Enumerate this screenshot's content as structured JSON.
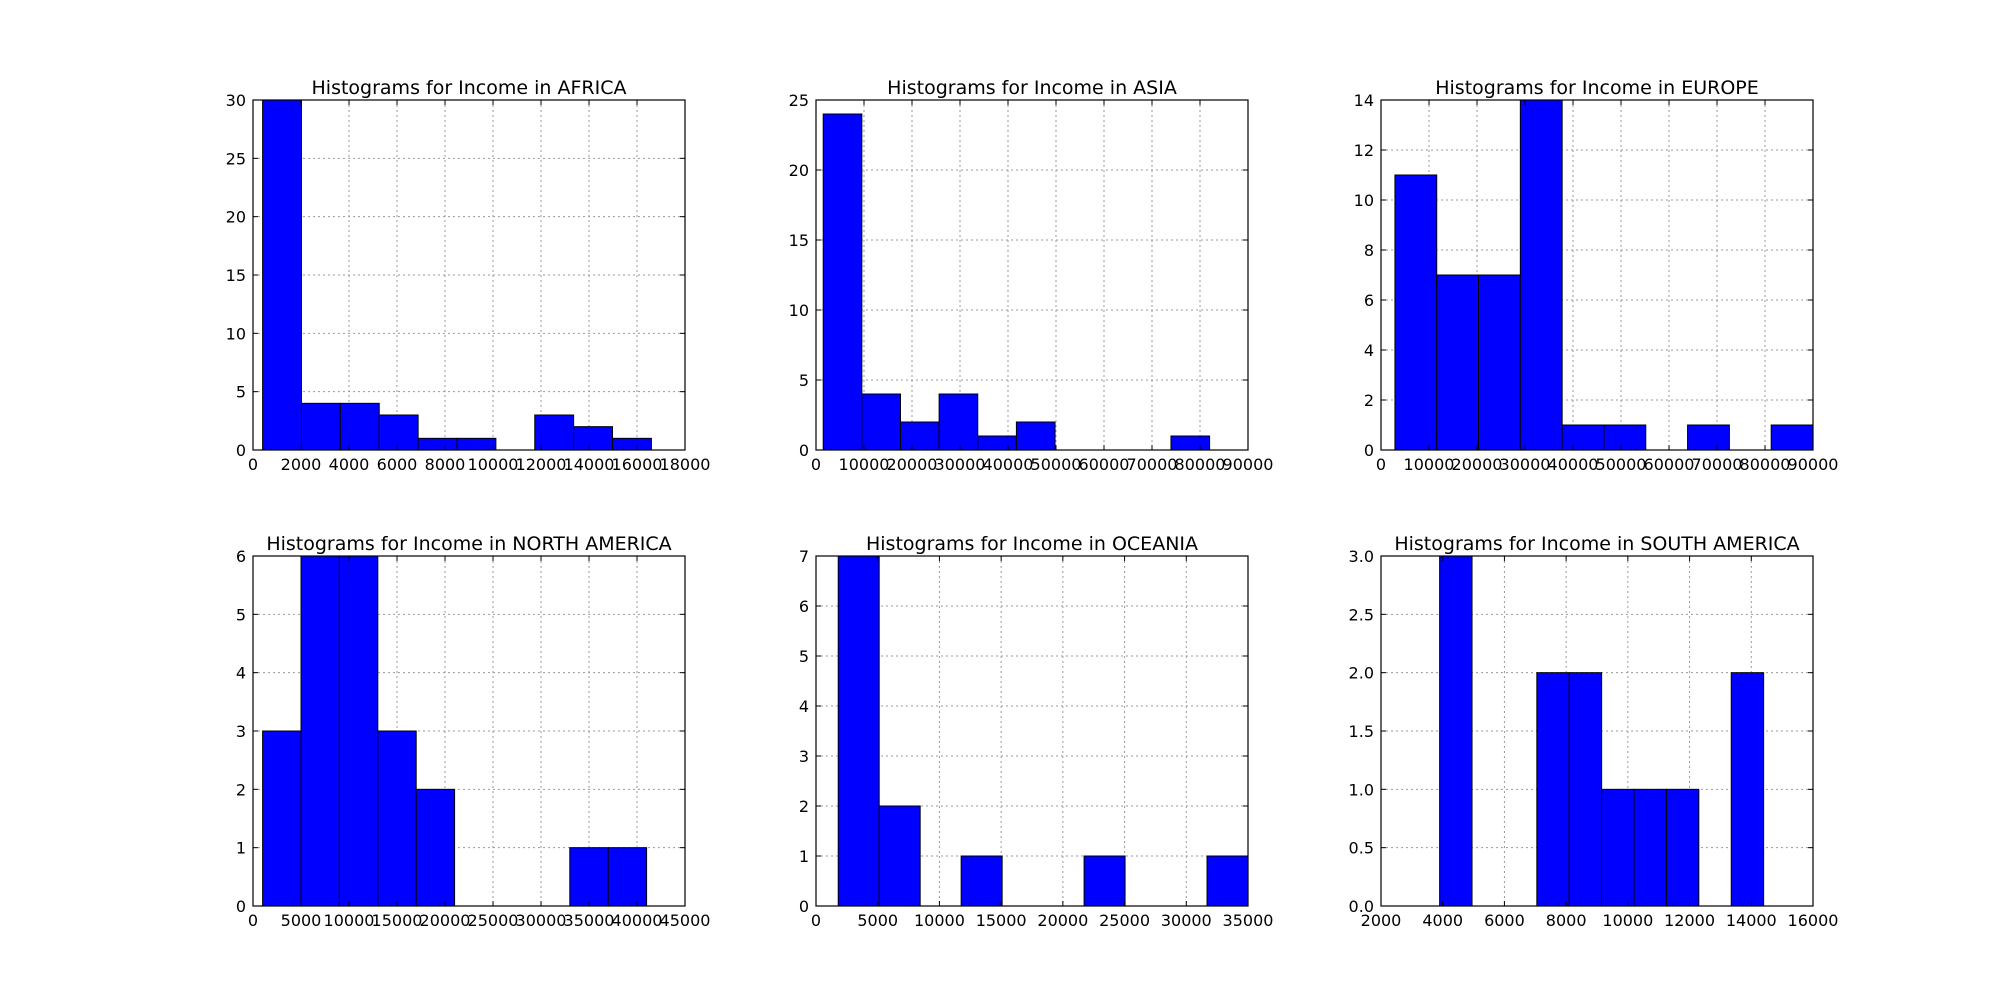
{
  "colors": {
    "bar": "#0000ff",
    "bar_edge": "#000000",
    "grid": "#9a9a9a",
    "background": "#ffffff"
  },
  "chart_data": [
    {
      "type": "bar",
      "title": "Histograms for Income in AFRICA",
      "xlabel": "",
      "ylabel": "",
      "xlim": [
        0,
        18000
      ],
      "ylim": [
        0,
        30
      ],
      "xticks": [
        0,
        2000,
        4000,
        6000,
        8000,
        10000,
        12000,
        14000,
        16000,
        18000
      ],
      "yticks": [
        0,
        5,
        10,
        15,
        20,
        25,
        30
      ],
      "grid": true,
      "bins": [
        {
          "x0": 400,
          "x1": 2020,
          "count": 30
        },
        {
          "x0": 2020,
          "x1": 3640,
          "count": 4
        },
        {
          "x0": 3640,
          "x1": 5260,
          "count": 4
        },
        {
          "x0": 5260,
          "x1": 6880,
          "count": 3
        },
        {
          "x0": 6880,
          "x1": 8500,
          "count": 1
        },
        {
          "x0": 8500,
          "x1": 10120,
          "count": 1
        },
        {
          "x0": 10120,
          "x1": 11740,
          "count": 0
        },
        {
          "x0": 11740,
          "x1": 13360,
          "count": 3
        },
        {
          "x0": 13360,
          "x1": 14980,
          "count": 2
        },
        {
          "x0": 14980,
          "x1": 16600,
          "count": 1
        }
      ]
    },
    {
      "type": "bar",
      "title": "Histograms for Income in ASIA",
      "xlabel": "",
      "ylabel": "",
      "xlim": [
        0,
        90000
      ],
      "ylim": [
        0,
        25
      ],
      "xticks": [
        0,
        10000,
        20000,
        30000,
        40000,
        50000,
        60000,
        70000,
        80000,
        90000
      ],
      "yticks": [
        0,
        5,
        10,
        15,
        20,
        25
      ],
      "grid": true,
      "bins": [
        {
          "x0": 1500,
          "x1": 9550,
          "count": 24
        },
        {
          "x0": 9550,
          "x1": 17600,
          "count": 4
        },
        {
          "x0": 17600,
          "x1": 25650,
          "count": 2
        },
        {
          "x0": 25650,
          "x1": 33700,
          "count": 4
        },
        {
          "x0": 33700,
          "x1": 41750,
          "count": 1
        },
        {
          "x0": 41750,
          "x1": 49800,
          "count": 2
        },
        {
          "x0": 49800,
          "x1": 57850,
          "count": 0
        },
        {
          "x0": 57850,
          "x1": 65900,
          "count": 0
        },
        {
          "x0": 65900,
          "x1": 73950,
          "count": 0
        },
        {
          "x0": 73950,
          "x1": 82000,
          "count": 1
        }
      ]
    },
    {
      "type": "bar",
      "title": "Histograms for Income in EUROPE",
      "xlabel": "",
      "ylabel": "",
      "xlim": [
        0,
        90000
      ],
      "ylim": [
        0,
        14
      ],
      "xticks": [
        0,
        10000,
        20000,
        30000,
        40000,
        50000,
        60000,
        70000,
        80000,
        90000
      ],
      "yticks": [
        0,
        2,
        4,
        6,
        8,
        10,
        12,
        14
      ],
      "grid": true,
      "bins": [
        {
          "x0": 2900,
          "x1": 11610,
          "count": 11
        },
        {
          "x0": 11610,
          "x1": 20320,
          "count": 7
        },
        {
          "x0": 20320,
          "x1": 29030,
          "count": 7
        },
        {
          "x0": 29030,
          "x1": 37740,
          "count": 14
        },
        {
          "x0": 37740,
          "x1": 46450,
          "count": 1
        },
        {
          "x0": 46450,
          "x1": 55160,
          "count": 1
        },
        {
          "x0": 55160,
          "x1": 63870,
          "count": 0
        },
        {
          "x0": 63870,
          "x1": 72580,
          "count": 1
        },
        {
          "x0": 72580,
          "x1": 81290,
          "count": 0
        },
        {
          "x0": 81290,
          "x1": 90000,
          "count": 1
        }
      ]
    },
    {
      "type": "bar",
      "title": "Histograms for Income in NORTH AMERICA",
      "xlabel": "",
      "ylabel": "",
      "xlim": [
        0,
        45000
      ],
      "ylim": [
        0,
        6
      ],
      "xticks": [
        0,
        5000,
        10000,
        15000,
        20000,
        25000,
        30000,
        35000,
        40000,
        45000
      ],
      "yticks": [
        0,
        1,
        2,
        3,
        4,
        5,
        6
      ],
      "grid": true,
      "bins": [
        {
          "x0": 1000,
          "x1": 5000,
          "count": 3
        },
        {
          "x0": 5000,
          "x1": 9000,
          "count": 6
        },
        {
          "x0": 9000,
          "x1": 13000,
          "count": 6
        },
        {
          "x0": 13000,
          "x1": 17000,
          "count": 3
        },
        {
          "x0": 17000,
          "x1": 21000,
          "count": 2
        },
        {
          "x0": 21000,
          "x1": 25000,
          "count": 0
        },
        {
          "x0": 25000,
          "x1": 29000,
          "count": 0
        },
        {
          "x0": 29000,
          "x1": 33000,
          "count": 0
        },
        {
          "x0": 33000,
          "x1": 37000,
          "count": 1
        },
        {
          "x0": 37000,
          "x1": 41000,
          "count": 1
        }
      ]
    },
    {
      "type": "bar",
      "title": "Histograms for Income in OCEANIA",
      "xlabel": "",
      "ylabel": "",
      "xlim": [
        0,
        35000
      ],
      "ylim": [
        0,
        7
      ],
      "xticks": [
        0,
        5000,
        10000,
        15000,
        20000,
        25000,
        30000,
        35000
      ],
      "yticks": [
        0,
        1,
        2,
        3,
        4,
        5,
        6,
        7
      ],
      "grid": true,
      "bins": [
        {
          "x0": 1800,
          "x1": 5120,
          "count": 7
        },
        {
          "x0": 5120,
          "x1": 8440,
          "count": 2
        },
        {
          "x0": 8440,
          "x1": 11760,
          "count": 0
        },
        {
          "x0": 11760,
          "x1": 15080,
          "count": 1
        },
        {
          "x0": 15080,
          "x1": 18400,
          "count": 0
        },
        {
          "x0": 18400,
          "x1": 21720,
          "count": 0
        },
        {
          "x0": 21720,
          "x1": 25040,
          "count": 1
        },
        {
          "x0": 25040,
          "x1": 28360,
          "count": 0
        },
        {
          "x0": 28360,
          "x1": 31680,
          "count": 0
        },
        {
          "x0": 31680,
          "x1": 35000,
          "count": 1
        }
      ]
    },
    {
      "type": "bar",
      "title": "Histograms for Income in SOUTH AMERICA",
      "xlabel": "",
      "ylabel": "",
      "xlim": [
        2000,
        16000
      ],
      "ylim": [
        0,
        3
      ],
      "xticks": [
        2000,
        4000,
        6000,
        8000,
        10000,
        12000,
        14000,
        16000
      ],
      "yticks": [
        "0.0",
        "0.5",
        "1.0",
        "1.5",
        "2.0",
        "2.5",
        "3.0"
      ],
      "grid": true,
      "bins": [
        {
          "x0": 3900,
          "x1": 4950,
          "count": 3
        },
        {
          "x0": 4950,
          "x1": 6000,
          "count": 0
        },
        {
          "x0": 6000,
          "x1": 7050,
          "count": 0
        },
        {
          "x0": 7050,
          "x1": 8100,
          "count": 2
        },
        {
          "x0": 8100,
          "x1": 9150,
          "count": 2
        },
        {
          "x0": 9150,
          "x1": 10200,
          "count": 1
        },
        {
          "x0": 10200,
          "x1": 11250,
          "count": 1
        },
        {
          "x0": 11250,
          "x1": 12300,
          "count": 1
        },
        {
          "x0": 12300,
          "x1": 13350,
          "count": 0
        },
        {
          "x0": 13350,
          "x1": 14400,
          "count": 2
        }
      ]
    }
  ]
}
